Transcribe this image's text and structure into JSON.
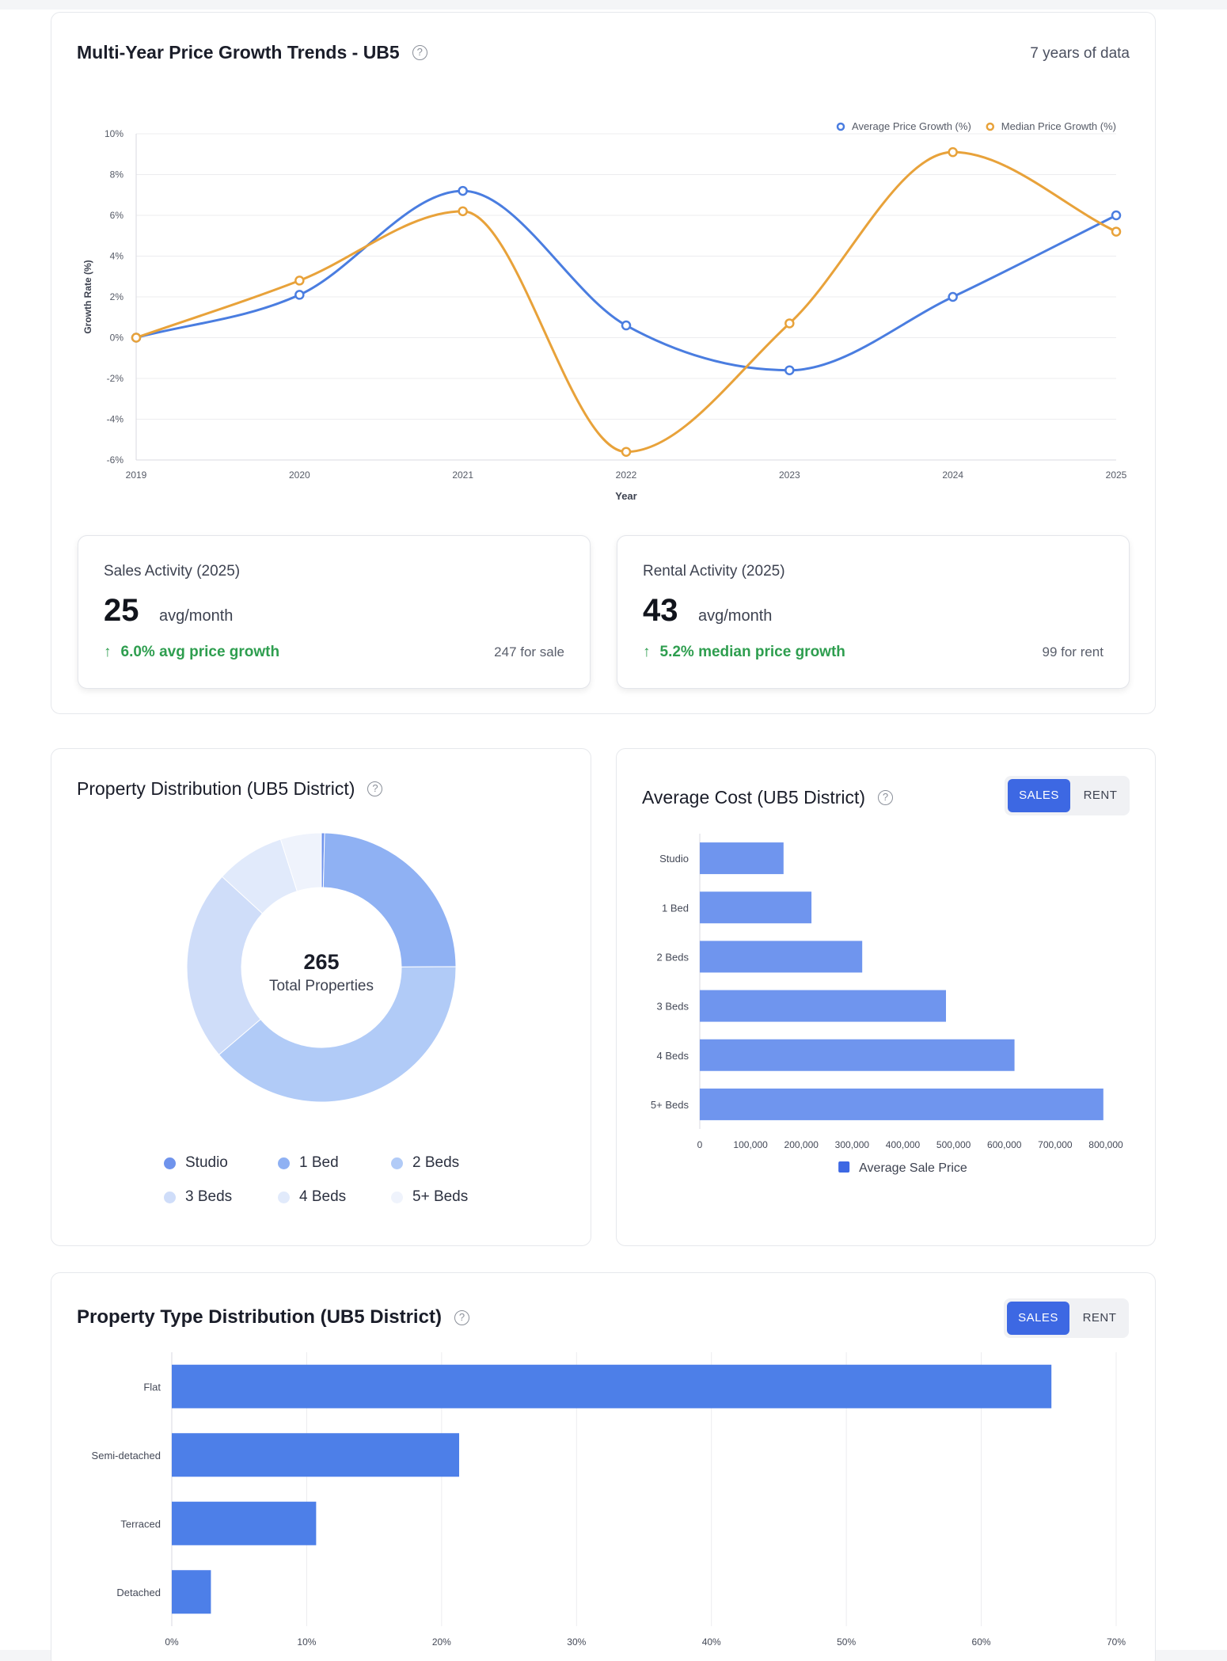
{
  "growth_card": {
    "title": "Multi-Year Price Growth Trends - UB5",
    "years_label": "7 years of data",
    "chart_data": {
      "type": "line",
      "x": [
        "2019",
        "2020",
        "2021",
        "2022",
        "2023",
        "2024",
        "2025"
      ],
      "series": [
        {
          "name": "Average Price Growth (%)",
          "color": "#4a7de0",
          "values": [
            0,
            2.1,
            7.2,
            0.6,
            -1.6,
            2.0,
            6.0
          ]
        },
        {
          "name": "Median Price Growth (%)",
          "color": "#e8a23a",
          "values": [
            0,
            2.8,
            6.2,
            -5.6,
            0.7,
            9.1,
            5.2
          ]
        }
      ],
      "xlabel": "Year",
      "ylabel": "Growth Rate (%)",
      "ylim": [
        -6,
        10
      ],
      "yticks": [
        "10%",
        "8%",
        "6%",
        "4%",
        "2%",
        "0%",
        "-2%",
        "-4%",
        "-6%"
      ],
      "grid": true,
      "legend": "top-right"
    },
    "sales": {
      "label": "Sales Activity (2025)",
      "value": "25",
      "unit": "avg/month",
      "growth": "6.0% avg price growth",
      "count": "247 for sale"
    },
    "rental": {
      "label": "Rental Activity (2025)",
      "value": "43",
      "unit": "avg/month",
      "growth": "5.2% median price growth",
      "count": "99 for rent"
    }
  },
  "distribution_card": {
    "title": "Property Distribution (UB5 District)",
    "total": "265",
    "total_label": "Total Properties",
    "chart_data": {
      "type": "pie",
      "labels": [
        "Studio",
        "1 Bed",
        "2 Beds",
        "3 Beds",
        "4 Beds",
        "5+ Beds"
      ],
      "values": [
        1,
        65,
        103,
        61,
        22,
        13
      ],
      "colors": [
        "#6f93ec",
        "#8fb1f3",
        "#b1cbf7",
        "#cfddf9",
        "#e1eafb",
        "#eff3fc"
      ],
      "legend": "bottom"
    }
  },
  "cost_card": {
    "title": "Average Cost (UB5 District)",
    "toggle": {
      "on": "SALES",
      "off": "RENT"
    },
    "chart_data": {
      "type": "bar",
      "orientation": "horizontal",
      "categories": [
        "Studio",
        "1 Bed",
        "2 Beds",
        "3 Beds",
        "4 Beds",
        "5+ Beds"
      ],
      "values": [
        165000,
        220000,
        320000,
        485000,
        620000,
        795000
      ],
      "xlim": [
        0,
        800000
      ],
      "xticks": [
        "0",
        "100,000",
        "200,000",
        "300,000",
        "400,000",
        "500,000",
        "600,000",
        "700,000",
        "800,000"
      ],
      "series_name": "Average Sale Price",
      "bar_color": "#6f95ee",
      "legend_color": "#3d68e3",
      "legend": "bottom"
    }
  },
  "type_card": {
    "title": "Property Type Distribution (UB5 District)",
    "toggle": {
      "on": "SALES",
      "off": "RENT"
    },
    "chart_data": {
      "type": "bar",
      "orientation": "horizontal",
      "categories": [
        "Flat",
        "Semi-detached",
        "Terraced",
        "Detached"
      ],
      "values": [
        65.2,
        21.3,
        10.7,
        2.9
      ],
      "xlim": [
        0,
        70
      ],
      "xticks": [
        "0%",
        "10%",
        "20%",
        "30%",
        "40%",
        "50%",
        "60%",
        "70%"
      ],
      "bar_color": "#4d7fe8",
      "grid": true
    }
  }
}
